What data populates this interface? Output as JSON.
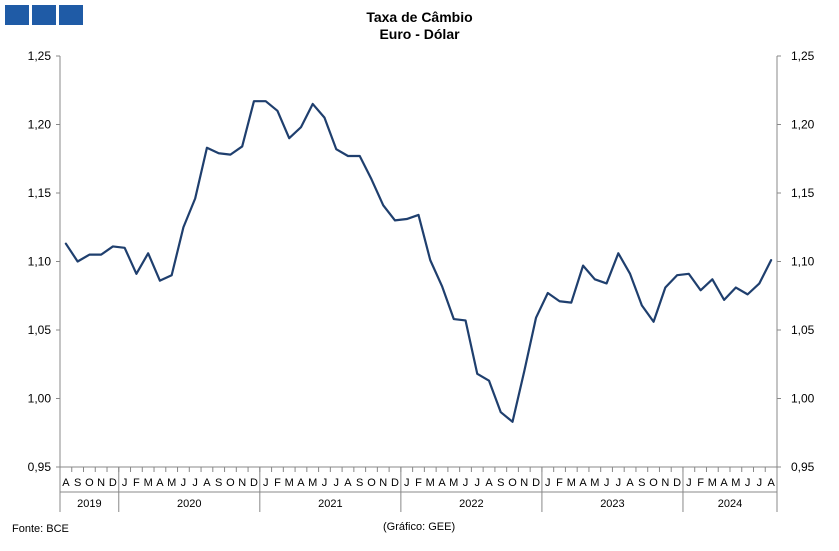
{
  "logo": {
    "color": "#1f5ba6"
  },
  "chart_data": {
    "type": "line",
    "title": "Taxa de Câmbio",
    "subtitle": "Euro - Dólar",
    "ylim": [
      0.95,
      1.25
    ],
    "y_ticks_left": [
      "0,95",
      "1,00",
      "1,05",
      "1,10",
      "1,15",
      "1,20",
      "1,25"
    ],
    "y_ticks_right": [
      "0,95",
      "1,00",
      "1,05",
      "1,10",
      "1,15",
      "1,20",
      "1,25"
    ],
    "grid": false,
    "legend": "none",
    "line_color": "#1f3f6e",
    "month_labels": [
      "A",
      "S",
      "O",
      "N",
      "D",
      "J",
      "F",
      "M",
      "A",
      "M",
      "J",
      "J",
      "A",
      "S",
      "O",
      "N",
      "D",
      "J",
      "F",
      "M",
      "A",
      "M",
      "J",
      "J",
      "A",
      "S",
      "O",
      "N",
      "D",
      "J",
      "F",
      "M",
      "A",
      "M",
      "J",
      "J",
      "A",
      "S",
      "O",
      "N",
      "D",
      "J",
      "F",
      "M",
      "A",
      "M",
      "J",
      "J",
      "A",
      "S",
      "O",
      "N",
      "D",
      "J",
      "F",
      "M",
      "A",
      "M",
      "J",
      "J",
      "A"
    ],
    "years": [
      {
        "label": "2019",
        "start": 0,
        "count": 5
      },
      {
        "label": "2020",
        "start": 5,
        "count": 12
      },
      {
        "label": "2021",
        "start": 17,
        "count": 12
      },
      {
        "label": "2022",
        "start": 29,
        "count": 12
      },
      {
        "label": "2023",
        "start": 41,
        "count": 12
      },
      {
        "label": "2024",
        "start": 53,
        "count": 8
      }
    ],
    "x": [
      "2019-08",
      "2019-09",
      "2019-10",
      "2019-11",
      "2019-12",
      "2020-01",
      "2020-02",
      "2020-03",
      "2020-04",
      "2020-05",
      "2020-06",
      "2020-07",
      "2020-08",
      "2020-09",
      "2020-10",
      "2020-11",
      "2020-12",
      "2021-01",
      "2021-02",
      "2021-03",
      "2021-04",
      "2021-05",
      "2021-06",
      "2021-07",
      "2021-08",
      "2021-09",
      "2021-10",
      "2021-11",
      "2021-12",
      "2022-01",
      "2022-02",
      "2022-03",
      "2022-04",
      "2022-05",
      "2022-06",
      "2022-07",
      "2022-08",
      "2022-09",
      "2022-10",
      "2022-11",
      "2022-12",
      "2023-01",
      "2023-02",
      "2023-03",
      "2023-04",
      "2023-05",
      "2023-06",
      "2023-07",
      "2023-08",
      "2023-09",
      "2023-10",
      "2023-11",
      "2023-12",
      "2024-01",
      "2024-02",
      "2024-03",
      "2024-04",
      "2024-05",
      "2024-06",
      "2024-07",
      "2024-08"
    ],
    "series": [
      {
        "values": [
          1.113,
          1.1,
          1.105,
          1.105,
          1.111,
          1.11,
          1.091,
          1.106,
          1.086,
          1.09,
          1.125,
          1.146,
          1.183,
          1.179,
          1.178,
          1.184,
          1.217,
          1.217,
          1.21,
          1.19,
          1.198,
          1.215,
          1.205,
          1.182,
          1.177,
          1.177,
          1.16,
          1.141,
          1.13,
          1.131,
          1.134,
          1.101,
          1.082,
          1.058,
          1.057,
          1.018,
          1.013,
          0.99,
          0.983,
          1.02,
          1.059,
          1.077,
          1.071,
          1.07,
          1.097,
          1.087,
          1.084,
          1.106,
          1.091,
          1.068,
          1.056,
          1.081,
          1.09,
          1.091,
          1.079,
          1.087,
          1.072,
          1.081,
          1.076,
          1.084,
          1.101
        ]
      }
    ]
  },
  "footer": {
    "source": "Fonte: BCE",
    "credit": "(Gráfico: GEE)"
  }
}
